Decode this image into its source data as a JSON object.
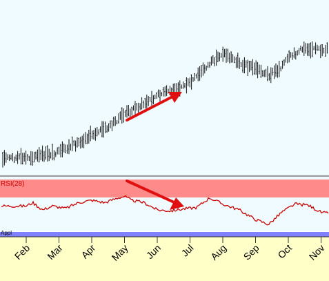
{
  "chart_data": [
    {
      "type": "line",
      "subtype": "price-bars",
      "title": "",
      "xlabel": "",
      "ylabel": "",
      "x_months": [
        "Feb",
        "Mar",
        "Apr",
        "May",
        "Jun",
        "Jul",
        "Aug",
        "Sep",
        "Oct",
        "Nov"
      ],
      "ylim": [
        0,
        100
      ],
      "price_path": [
        [
          0,
          8
        ],
        [
          0.5,
          10
        ],
        [
          1,
          12
        ],
        [
          1.5,
          18
        ],
        [
          2,
          25
        ],
        [
          2.5,
          30
        ],
        [
          3,
          40
        ],
        [
          3.5,
          46
        ],
        [
          4,
          53
        ],
        [
          4.5,
          58
        ],
        [
          5,
          62
        ],
        [
          5.5,
          74
        ],
        [
          6,
          84
        ],
        [
          6.3,
          80
        ],
        [
          6.6,
          76
        ],
        [
          7,
          73
        ],
        [
          7.4,
          68
        ],
        [
          7.7,
          72
        ],
        [
          8.0,
          80
        ],
        [
          8.5,
          88
        ],
        [
          9,
          86
        ],
        [
          9.5,
          88
        ],
        [
          9.8,
          95
        ]
      ],
      "annotation": {
        "type": "arrow",
        "color": "#e01010",
        "direction": "up"
      },
      "grid": false
    },
    {
      "type": "line",
      "title": "RSI(28)",
      "ylim": [
        0,
        100
      ],
      "overbought_band": [
        60,
        100
      ],
      "line_color": "#c80000",
      "band_color": "#ff8a8a",
      "rsi_path": [
        [
          0,
          48
        ],
        [
          0.2,
          55
        ],
        [
          0.5,
          40
        ],
        [
          0.8,
          48
        ],
        [
          1.2,
          43
        ],
        [
          1.6,
          55
        ],
        [
          2.0,
          60
        ],
        [
          2.4,
          55
        ],
        [
          2.8,
          65
        ],
        [
          3.0,
          68
        ],
        [
          3.2,
          60
        ],
        [
          3.6,
          55
        ],
        [
          4.0,
          40
        ],
        [
          4.4,
          38
        ],
        [
          4.8,
          42
        ],
        [
          5.2,
          45
        ],
        [
          5.6,
          65
        ],
        [
          6.0,
          52
        ],
        [
          6.5,
          40
        ],
        [
          7.0,
          20
        ],
        [
          7.4,
          10
        ],
        [
          7.8,
          35
        ],
        [
          8.2,
          52
        ],
        [
          8.6,
          50
        ],
        [
          9.0,
          35
        ],
        [
          9.4,
          30
        ],
        [
          9.8,
          40
        ]
      ],
      "annotation": {
        "type": "arrow",
        "color": "#e01010",
        "direction": "down"
      },
      "grid": false
    }
  ],
  "colors": {
    "background": "#f0fbff",
    "bars": "#111111",
    "rsi_band": "#ff8a8a",
    "rsi_line": "#c80000",
    "footer_strip": "#8080ff",
    "axis_bg": "#ffffc8",
    "arrow": "#e01010"
  },
  "rsi_label": "RSI(28)",
  "clipped_label": "Appl"
}
